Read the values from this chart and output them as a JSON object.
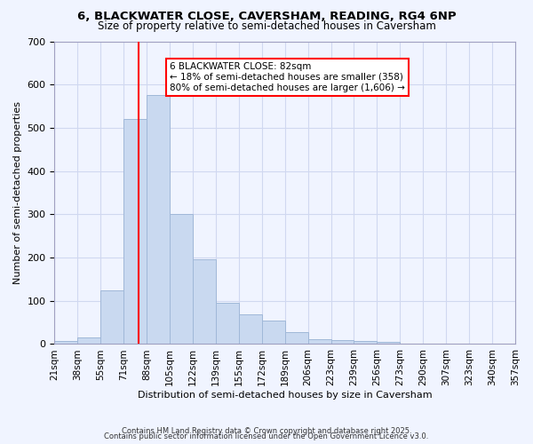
{
  "title1": "6, BLACKWATER CLOSE, CAVERSHAM, READING, RG4 6NP",
  "title2": "Size of property relative to semi-detached houses in Caversham",
  "xlabel": "Distribution of semi-detached houses by size in Caversham",
  "ylabel": "Number of semi-detached properties",
  "bin_labels": [
    "21sqm",
    "38sqm",
    "55sqm",
    "71sqm",
    "88sqm",
    "105sqm",
    "122sqm",
    "139sqm",
    "155sqm",
    "172sqm",
    "189sqm",
    "206sqm",
    "223sqm",
    "239sqm",
    "256sqm",
    "273sqm",
    "290sqm",
    "307sqm",
    "323sqm",
    "340sqm",
    "357sqm"
  ],
  "bar_heights": [
    7,
    15,
    125,
    520,
    575,
    300,
    195,
    95,
    68,
    55,
    28,
    12,
    10,
    7,
    5,
    0,
    0,
    0,
    0,
    0
  ],
  "bar_color": "#c9d9f0",
  "bar_edgecolor": "#a0b8d8",
  "red_line_x": 3.82,
  "annotation_text": "6 BLACKWATER CLOSE: 82sqm\n← 18% of semi-detached houses are smaller (358)\n80% of semi-detached houses are larger (1,606) →",
  "annotation_box_color": "white",
  "annotation_box_edgecolor": "red",
  "ylim": [
    0,
    700
  ],
  "yticks": [
    0,
    100,
    200,
    300,
    400,
    500,
    600,
    700
  ],
  "footer1": "Contains HM Land Registry data © Crown copyright and database right 2025.",
  "footer2": "Contains public sector information licensed under the Open Government Licence v3.0.",
  "background_color": "#f0f4ff",
  "grid_color": "#d0d8f0"
}
